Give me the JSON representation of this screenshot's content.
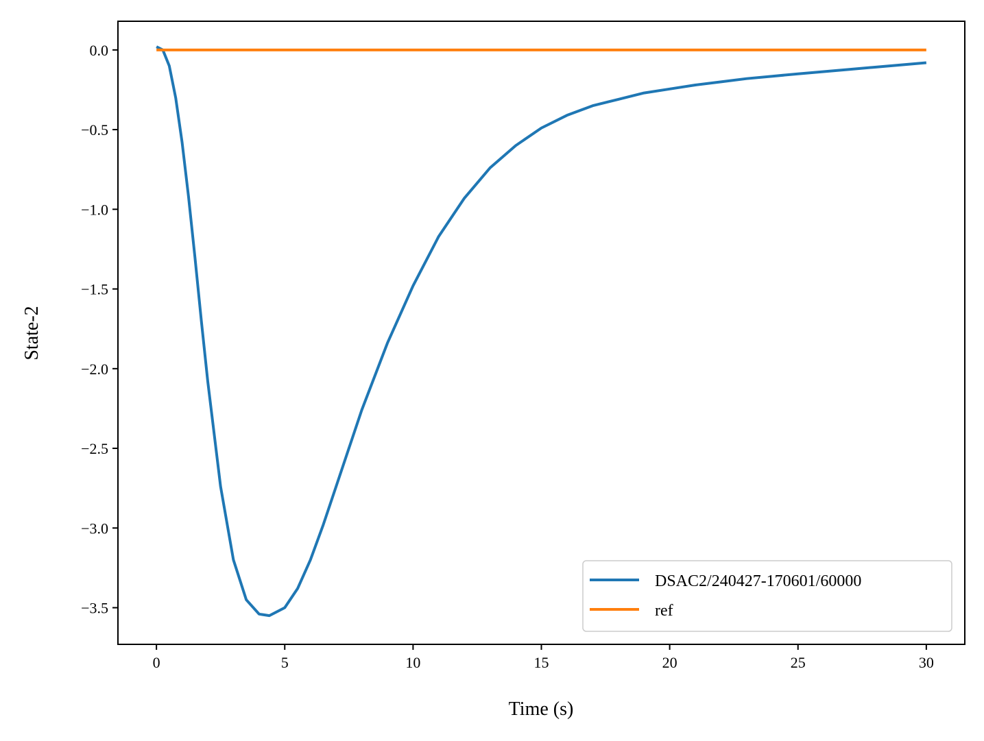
{
  "chart_data": {
    "type": "line",
    "xlabel": "Time (s)",
    "ylabel": "State-2",
    "xlim": [
      -1.5,
      31.5
    ],
    "ylim": [
      -3.73,
      0.18
    ],
    "xticks": [
      0,
      5,
      10,
      15,
      20,
      25,
      30
    ],
    "xtick_labels": [
      "0",
      "5",
      "10",
      "15",
      "20",
      "25",
      "30"
    ],
    "yticks": [
      0.0,
      -0.5,
      -1.0,
      -1.5,
      -2.0,
      -2.5,
      -3.0,
      -3.5
    ],
    "ytick_labels": [
      "0.0",
      "−0.5",
      "−1.0",
      "−1.5",
      "−2.0",
      "−2.5",
      "−3.0",
      "−3.5"
    ],
    "grid": false,
    "legend_position": "lower-right",
    "series": [
      {
        "name": "DSAC2/240427-170601/60000",
        "color": "#1f77b4",
        "x": [
          0,
          0.25,
          0.5,
          0.75,
          1.0,
          1.25,
          1.5,
          1.75,
          2.0,
          2.5,
          3.0,
          3.5,
          4.0,
          4.4,
          5.0,
          5.5,
          6.0,
          6.5,
          7.0,
          7.5,
          8.0,
          9.0,
          10.0,
          11.0,
          12.0,
          13.0,
          14.0,
          15.0,
          16.0,
          17.0,
          18.0,
          19.0,
          20.0,
          21.0,
          22.0,
          23.0,
          24.0,
          25.0,
          26.0,
          27.0,
          28.0,
          29.0,
          30.0
        ],
        "y": [
          0.02,
          0.0,
          -0.1,
          -0.3,
          -0.58,
          -0.92,
          -1.3,
          -1.7,
          -2.08,
          -2.74,
          -3.2,
          -3.45,
          -3.54,
          -3.55,
          -3.5,
          -3.38,
          -3.2,
          -2.98,
          -2.74,
          -2.5,
          -2.26,
          -1.84,
          -1.48,
          -1.17,
          -0.93,
          -0.74,
          -0.6,
          -0.49,
          -0.41,
          -0.35,
          -0.31,
          -0.27,
          -0.245,
          -0.22,
          -0.2,
          -0.18,
          -0.165,
          -0.15,
          -0.136,
          -0.122,
          -0.108,
          -0.094,
          -0.08
        ]
      },
      {
        "name": "ref",
        "color": "#ff7f0e",
        "x": [
          0,
          30
        ],
        "y": [
          0.0,
          0.0
        ]
      }
    ]
  }
}
